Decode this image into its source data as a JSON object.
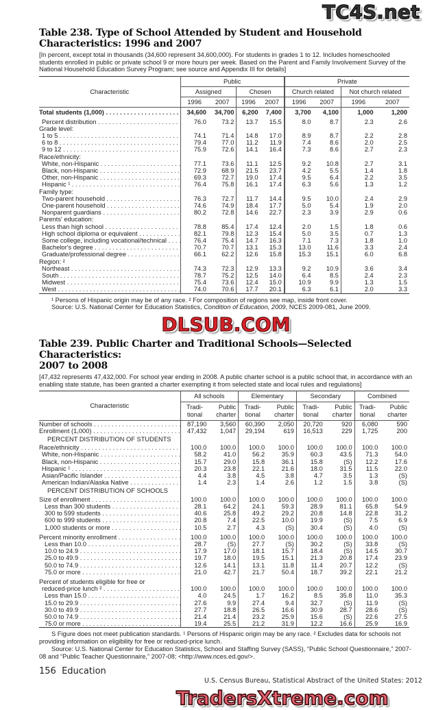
{
  "watermarks": {
    "top": "TC4S.net",
    "middle": "DLSUB.COM",
    "bottom": "TradersXtreme.com"
  },
  "t238": {
    "title_line1": "Table 238. Type of School Attended by Student and Household",
    "title_line2": "Characteristics: 1996 and 2007",
    "headnote": "[In percent, except total in thousands (34,600 represent 34,600,000). For students in grades 1 to 12. Includes homeschooled students enrolled in public or private school 9 or more hours per week. Based on the Parent and Family Involvement Survey of the National Household Education Survey Program; see source and Appendix III for details]",
    "col_char": "Characteristic",
    "grp_public": "Public",
    "grp_private": "Private",
    "sub": [
      "Assigned",
      "Chosen",
      "Church related",
      "Not church related"
    ],
    "years": [
      "1996",
      "2007",
      "1996",
      "2007",
      "1996",
      "2007",
      "1996",
      "2007"
    ],
    "rows": [
      {
        "label": "Total students (1,000)",
        "bold": true,
        "v": [
          "34,600",
          "34,700",
          "6,200",
          "7,400",
          "3,700",
          "4,100",
          "1,000",
          "1,200"
        ]
      },
      {
        "label": "Percent distribution",
        "ind": 1,
        "v": [
          "76.0",
          "73.2",
          "13.7",
          "15.5",
          "8.0",
          "8.7",
          "2.3",
          "2.6"
        ]
      },
      {
        "label": "Grade level:",
        "head": true
      },
      {
        "label": "1 to 5",
        "ind": 1,
        "v": [
          "74.1",
          "71.4",
          "14.8",
          "17.0",
          "8.9",
          "8.7",
          "2.2",
          "2.8"
        ]
      },
      {
        "label": "6 to 8",
        "ind": 1,
        "v": [
          "79.4",
          "77.0",
          "11.2",
          "11.9",
          "7.4",
          "8.6",
          "2.0",
          "2.5"
        ]
      },
      {
        "label": "9 to 12",
        "ind": 1,
        "v": [
          "75.9",
          "72.6",
          "14.1",
          "16.4",
          "7.3",
          "8.6",
          "2.7",
          "2.3"
        ]
      },
      {
        "label": "Race/ethnicity:",
        "head": true
      },
      {
        "label": "White, non-Hispanic",
        "ind": 1,
        "v": [
          "77.1",
          "73.6",
          "11.1",
          "12.5",
          "9.2",
          "10.8",
          "2.7",
          "3.1"
        ]
      },
      {
        "label": "Black, non-Hispanic",
        "ind": 1,
        "v": [
          "72.9",
          "68.9",
          "21.5",
          "23.7",
          "4.2",
          "5.5",
          "1.4",
          "1.8"
        ]
      },
      {
        "label": "Other, non-Hispanic",
        "ind": 1,
        "v": [
          "69.3",
          "72.7",
          "19.0",
          "17.4",
          "9.5",
          "6.4",
          "2.2",
          "3.5"
        ]
      },
      {
        "label": "Hispanic ¹",
        "ind": 1,
        "v": [
          "76.4",
          "75.8",
          "16.1",
          "17.4",
          "6.3",
          "5.6",
          "1.3",
          "1.2"
        ]
      },
      {
        "label": "Family type:",
        "head": true
      },
      {
        "label": "Two-parent household",
        "ind": 1,
        "v": [
          "76.3",
          "72.7",
          "11.7",
          "14.4",
          "9.5",
          "10.0",
          "2.4",
          "2.9"
        ]
      },
      {
        "label": "One-parent household",
        "ind": 1,
        "v": [
          "74.6",
          "74.9",
          "18.4",
          "17.7",
          "5.0",
          "5.4",
          "1.9",
          "2.0"
        ]
      },
      {
        "label": "Nonparent guardians",
        "ind": 1,
        "v": [
          "80.2",
          "72.8",
          "14.6",
          "22.7",
          "2.3",
          "3.9",
          "2.9",
          "0.6"
        ]
      },
      {
        "label": "Parents' education:",
        "head": true
      },
      {
        "label": "Less than high school",
        "ind": 1,
        "v": [
          "78.8",
          "85.4",
          "17.4",
          "12.4",
          "2.0",
          "1.5",
          "1.8",
          "0.6"
        ]
      },
      {
        "label": "High school diploma or equivalent",
        "ind": 1,
        "v": [
          "82.1",
          "79.8",
          "12.3",
          "15.4",
          "5.0",
          "3.5",
          "0.7",
          "1.3"
        ]
      },
      {
        "label": "Some college, including vocational/technical",
        "ind": 1,
        "v": [
          "76.4",
          "75.4",
          "14.7",
          "16.3",
          "7.1",
          "7.3",
          "1.8",
          "1.0"
        ]
      },
      {
        "label": "Bachelor's degree",
        "ind": 1,
        "v": [
          "70.7",
          "70.7",
          "13.1",
          "15.3",
          "13.0",
          "11.6",
          "3.3",
          "2.4"
        ]
      },
      {
        "label": "Graduate/professional degree",
        "ind": 1,
        "v": [
          "66.1",
          "62.2",
          "12.6",
          "15.8",
          "15.3",
          "15.1",
          "6.0",
          "6.8"
        ]
      },
      {
        "label": "Region: ²",
        "head": true
      },
      {
        "label": "Northeast",
        "ind": 1,
        "v": [
          "74.3",
          "72.3",
          "12.9",
          "13.3",
          "9.2",
          "10.9",
          "3.6",
          "3.4"
        ]
      },
      {
        "label": "South",
        "ind": 1,
        "v": [
          "78.7",
          "75.2",
          "12.5",
          "14.0",
          "6.4",
          "8.5",
          "2.4",
          "2.3"
        ]
      },
      {
        "label": "Midwest",
        "ind": 1,
        "v": [
          "75.4",
          "73.6",
          "12.4",
          "15.0",
          "10.9",
          "9.9",
          "1.3",
          "1.5"
        ]
      },
      {
        "label": "West",
        "ind": 1,
        "v": [
          "74.0",
          "70.6",
          "17.7",
          "20.1",
          "6.3",
          "6.1",
          "2.0",
          "3.3"
        ]
      }
    ],
    "footnote": "¹ Persons of Hispanic origin may be of any race. ² For composition of regions see map, inside front cover.",
    "source_pre": "Source: U.S. National Center for Education Statistics, ",
    "source_title": "Condition of Education, 2009",
    "source_post": ", NCES 2009-081, June 2009."
  },
  "t239": {
    "title_line1": "Table 239. Public Charter and Traditional Schools—Selected Characteristics:",
    "title_line2": "2007 to 2008",
    "headnote": "[47,432 represents 47,432,000. For school year ending in 2008. A public charter school is a public school that, in accordance with an enabling state statute, has been granted a charter exempting it from selected state and local rules and regulations]",
    "col_char": "Characteristic",
    "groups": [
      "All schools",
      "Elementary",
      "Secondary",
      "Combined"
    ],
    "sub": [
      "Tradi-\ntional",
      "Public\ncharter"
    ],
    "rows": [
      {
        "label": "Number of schools",
        "v": [
          "87,190",
          "3,560",
          "60,390",
          "2,050",
          "20,720",
          "920",
          "6,080",
          "590"
        ]
      },
      {
        "label": "Enrollment (1,000)",
        "v": [
          "47,432",
          "1,047",
          "29,194",
          "619",
          "16,513",
          "229",
          "1,725",
          "200"
        ]
      },
      {
        "label": "PERCENT DISTRIBUTION OF STUDENTS",
        "sec": true
      },
      {
        "label": "Race/ethnicity",
        "v": [
          "100.0",
          "100.0",
          "100.0",
          "100.0",
          "100.0",
          "100.0",
          "100.0",
          "100.0"
        ]
      },
      {
        "label": "White, non-Hispanic",
        "ind": 1,
        "v": [
          "58.2",
          "41.0",
          "56.2",
          "35.9",
          "60.3",
          "43.5",
          "71.3",
          "54.0"
        ]
      },
      {
        "label": "Black, non-Hispanic",
        "ind": 1,
        "v": [
          "15.7",
          "29.0",
          "15.8",
          "36.1",
          "15.8",
          "(S)",
          "12.2",
          "17.6"
        ]
      },
      {
        "label": "Hispanic ¹",
        "ind": 1,
        "v": [
          "20.3",
          "23.8",
          "22.1",
          "21.6",
          "18.0",
          "31.5",
          "11.5",
          "22.0"
        ]
      },
      {
        "label": "Asian/Pacific Islander",
        "ind": 1,
        "v": [
          "4.4",
          "3.8",
          "4.5",
          "3.8",
          "4.7",
          "3.5",
          "1.3",
          "(S)"
        ]
      },
      {
        "label": "American Indian/Alaska Native",
        "ind": 1,
        "v": [
          "1.4",
          "2.3",
          "1.4",
          "2.6",
          "1.2",
          "1.5",
          "3.8",
          "(S)"
        ]
      },
      {
        "label": "PERCENT DISTRIBUTION OF SCHOOLS",
        "sec": true
      },
      {
        "label": "Size of enrollment",
        "v": [
          "100.0",
          "100.0",
          "100.0",
          "100.0",
          "100.0",
          "100.0",
          "100.0",
          "100.0"
        ]
      },
      {
        "label": "Less than 300 students",
        "ind": 2,
        "v": [
          "28.1",
          "64.2",
          "24.1",
          "59.3",
          "28.9",
          "81.1",
          "65.8",
          "54.9"
        ]
      },
      {
        "label": "300 to 599 students",
        "ind": 2,
        "v": [
          "40.6",
          "25.8",
          "49.2",
          "29.2",
          "20.8",
          "14.8",
          "22.8",
          "31.2"
        ]
      },
      {
        "label": "600 to 999 students",
        "ind": 2,
        "v": [
          "20.8",
          "7.4",
          "22.5",
          "10.0",
          "19.9",
          "(S)",
          "7.5",
          "6.9"
        ]
      },
      {
        "label": "1,000 students or more",
        "ind": 2,
        "v": [
          "10.5",
          "2.7",
          "4.3",
          "(S)",
          "30.4",
          "(S)",
          "4.0",
          "(S)"
        ]
      },
      {
        "gap": true
      },
      {
        "label": "Percent minority enrollment",
        "v": [
          "100.0",
          "100.0",
          "100.0",
          "100.0",
          "100.0",
          "100.0",
          "100.0",
          "100.0"
        ]
      },
      {
        "label": "Less than 10.0",
        "ind": 2,
        "v": [
          "28.7",
          "(S)",
          "27.7",
          "(S)",
          "30.2",
          "(S)",
          "33.8",
          "(S)"
        ]
      },
      {
        "label": "10.0 to 24.9",
        "ind": 2,
        "v": [
          "17.9",
          "17.0",
          "18.1",
          "15.7",
          "18.4",
          "(S)",
          "14.5",
          "30.7"
        ]
      },
      {
        "label": "25.0 to 49.9",
        "ind": 2,
        "v": [
          "19.7",
          "18.0",
          "19.5",
          "15.1",
          "21.3",
          "20.8",
          "17.4",
          "23.9"
        ]
      },
      {
        "label": "50.0 to 74.9",
        "ind": 2,
        "v": [
          "12.6",
          "14.1",
          "13.1",
          "11.8",
          "11.4",
          "20.7",
          "12.2",
          "(S)"
        ]
      },
      {
        "label": "75.0 or more",
        "ind": 2,
        "v": [
          "21.0",
          "42.7",
          "21.7",
          "50.4",
          "18.7",
          "39.2",
          "22.1",
          "21.2"
        ]
      },
      {
        "gap": true
      },
      {
        "label": "Percent of students eligible for free or",
        "head": true
      },
      {
        "label": "reduced-price lunch ²",
        "ind": 1,
        "v": [
          "100.0",
          "100.0",
          "100.0",
          "100.0",
          "100.0",
          "100.0",
          "100.0",
          "100.0"
        ]
      },
      {
        "label": "Less than 15.0",
        "ind": 2,
        "v": [
          "4.0",
          "24.5",
          "1.7",
          "16.2",
          "8.5",
          "35.8",
          "11.0",
          "35.3"
        ]
      },
      {
        "label": "15.0 to 29.9",
        "ind": 2,
        "v": [
          "27.6",
          "9.9",
          "27.4",
          "9.4",
          "32.7",
          "(S)",
          "11.9",
          "(S)"
        ]
      },
      {
        "label": "30.0 to 49.9",
        "ind": 2,
        "v": [
          "27.7",
          "18.8",
          "26.5",
          "16.6",
          "30.9",
          "28.7",
          "28.6",
          "(S)"
        ]
      },
      {
        "label": "50.0 to 74.9",
        "ind": 2,
        "v": [
          "21.4",
          "21.4",
          "23.2",
          "25.9",
          "15.6",
          "(S)",
          "22.6",
          "27.5"
        ]
      },
      {
        "label": "75.0 or more",
        "ind": 2,
        "v": [
          "19.4",
          "25.5",
          "21.2",
          "31.9",
          "12.2",
          "16.6",
          "25.9",
          "16.9"
        ]
      }
    ],
    "footnote": "S Figure does not meet publication standards. ¹ Persons of Hispanic origin may be any race. ² Excludes data for schools not providing information on eligibility for free or reduced-price lunch.",
    "source": "Source: U.S. National Center for Education Statistics, School and Staffing Survey (SASS), “Public School Questionnaire,” 2007-08 and “Public Teacher Questionnaire,” 2007-08; <http://www.nces.ed.gov/>."
  },
  "page": {
    "number_section": "156  Education",
    "running_footer": "U.S. Census Bureau, Statistical Abstract of the United States: 2012"
  }
}
